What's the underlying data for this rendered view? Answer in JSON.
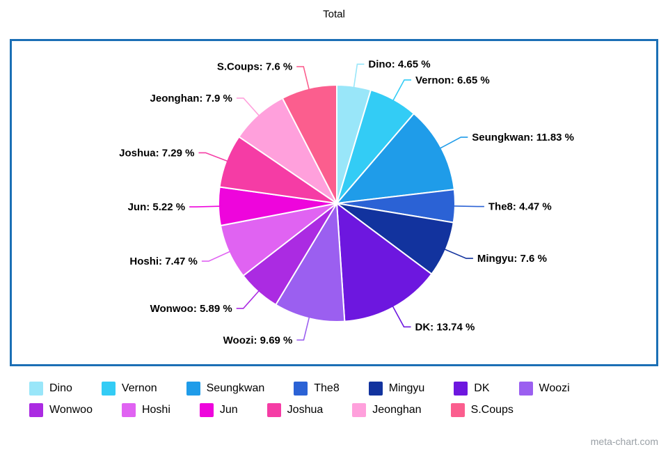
{
  "title": "Total",
  "watermark": "meta-chart.com",
  "chart_data": {
    "type": "pie",
    "title": "Total",
    "direction": "clockwise",
    "start_angle_deg": 0,
    "legend_position": "bottom",
    "border_color": "#1b6fb5",
    "slices": [
      {
        "name": "Dino",
        "value": 4.65,
        "label": "Dino: 4.65 %",
        "color": "#99e6f9"
      },
      {
        "name": "Vernon",
        "value": 6.65,
        "label": "Vernon: 6.65 %",
        "color": "#33ccf5"
      },
      {
        "name": "Seungkwan",
        "value": 11.83,
        "label": "Seungkwan: 11.83 %",
        "color": "#1f9ce9"
      },
      {
        "name": "The8",
        "value": 4.47,
        "label": "The8: 4.47 %",
        "color": "#2b62d5"
      },
      {
        "name": "Mingyu",
        "value": 7.6,
        "label": "Mingyu: 7.6 %",
        "color": "#12339e"
      },
      {
        "name": "DK",
        "value": 13.74,
        "label": "DK: 13.74 %",
        "color": "#6d17df"
      },
      {
        "name": "Woozi",
        "value": 9.69,
        "label": "Woozi: 9.69 %",
        "color": "#9b5ff0"
      },
      {
        "name": "Wonwoo",
        "value": 5.89,
        "label": "Wonwoo: 5.89 %",
        "color": "#ab2be2"
      },
      {
        "name": "Hoshi",
        "value": 7.47,
        "label": "Hoshi: 7.47 %",
        "color": "#e063f2"
      },
      {
        "name": "Jun",
        "value": 5.22,
        "label": "Jun: 5.22 %",
        "color": "#ee05dc"
      },
      {
        "name": "Joshua",
        "value": 7.29,
        "label": "Joshua: 7.29 %",
        "color": "#f53ca5"
      },
      {
        "name": "Jeonghan",
        "value": 7.9,
        "label": "Jeonghan: 7.9 %",
        "color": "#ffa0dc"
      },
      {
        "name": "S.Coups",
        "value": 7.6,
        "label": "S.Coups: 7.6 %",
        "color": "#fb5e8e"
      }
    ]
  }
}
